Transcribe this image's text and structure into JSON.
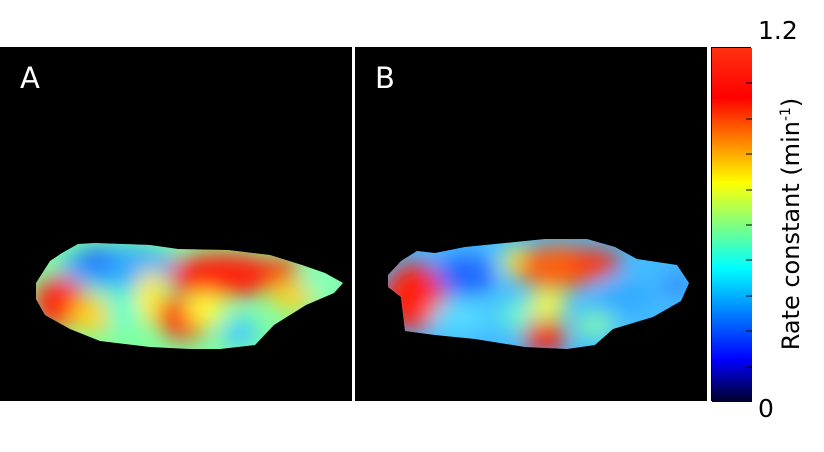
{
  "panels": [
    {
      "label": "A"
    },
    {
      "label": "B"
    }
  ],
  "colorbar": {
    "title_prefix": "Rate constant (min",
    "title_sup": "-1",
    "title_suffix": ")",
    "max_label": "1.2",
    "min_label": "0",
    "colormap": "jet",
    "colors": [
      "#00002a",
      "#0000ff",
      "#00ffff",
      "#ffff00",
      "#ff0000",
      "#ff3010"
    ]
  }
}
